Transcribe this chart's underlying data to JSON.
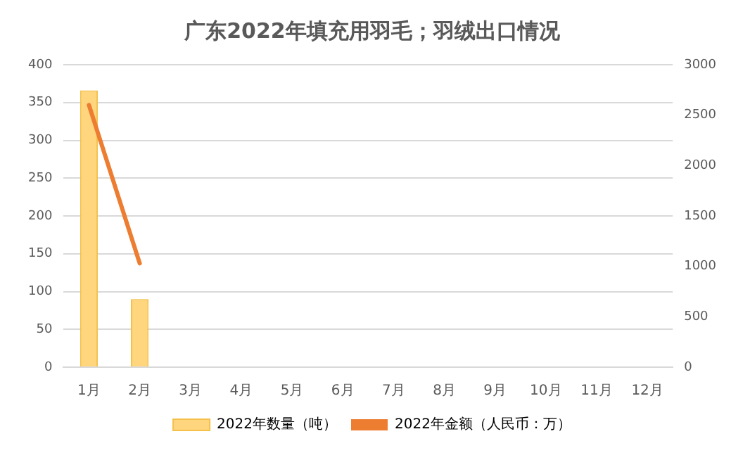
{
  "chart_data": {
    "type": "bar",
    "title": "广东2022年填充用羽毛；羽绒出口情况",
    "categories": [
      "1月",
      "2月",
      "3月",
      "4月",
      "5月",
      "6月",
      "7月",
      "8月",
      "9月",
      "10月",
      "11月",
      "12月"
    ],
    "series": [
      {
        "name": "2022年数量（吨）",
        "color": "#ffd57e",
        "values": [
          366,
          90,
          null,
          null,
          null,
          null,
          null,
          null,
          null,
          null,
          null,
          null
        ]
      },
      {
        "name": "2022年金额（人民币：万）",
        "type": "line",
        "axis": "y2",
        "color": "#ed7d31",
        "values": [
          2600,
          1030,
          null,
          null,
          null,
          null,
          null,
          null,
          null,
          null,
          null,
          null
        ]
      }
    ],
    "ylim": [
      0,
      400
    ],
    "yticks": [
      0,
      50,
      100,
      150,
      200,
      250,
      300,
      350,
      400
    ],
    "y2lim": [
      0,
      3000
    ],
    "y2ticks": [
      0,
      500,
      1000,
      1500,
      2000,
      2500,
      3000
    ],
    "grid": "y",
    "legend": "bottom",
    "marker": "none"
  }
}
